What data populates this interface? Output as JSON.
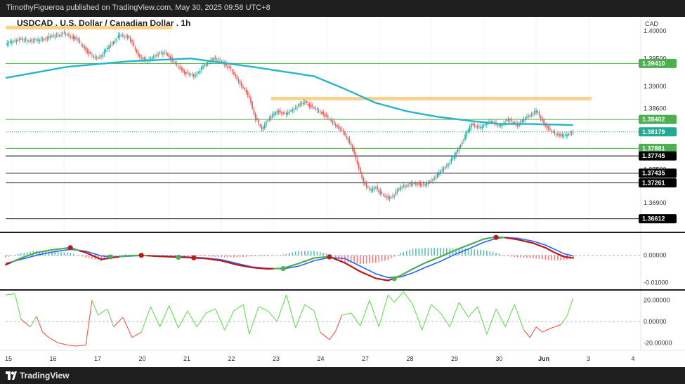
{
  "header": {
    "publish_line": "TimothyFigueroa published on TradingView.com, May 30, 2025 09:58 UTC+8"
  },
  "footer": {
    "brand": "TradingView",
    "logo_icon": "tradingview-logo-icon"
  },
  "chart_data": [
    {
      "type": "candlestick",
      "title": "USDCAD . U.S. Dollar / Canadian Dollar . 1h",
      "currency_label": "CAD",
      "ylim": [
        1.3638,
        1.4025
      ],
      "y_ticks": [
        "1.40000",
        "1.39500",
        "1.39000",
        "1.38600",
        "1.37500",
        "1.36900"
      ],
      "x_ticks": [
        "15",
        "16",
        "17",
        "20",
        "21",
        "22",
        "23",
        "24",
        "27",
        "28",
        "29",
        "30",
        "Jun",
        "3",
        "4"
      ],
      "price_path": [
        [
          0,
          1.3975
        ],
        [
          8,
          1.3985
        ],
        [
          14,
          1.3982
        ],
        [
          22,
          1.3983
        ],
        [
          30,
          1.399
        ],
        [
          38,
          1.3995
        ],
        [
          46,
          1.3985
        ],
        [
          52,
          1.3965
        ],
        [
          58,
          1.395
        ],
        [
          62,
          1.3955
        ],
        [
          68,
          1.3975
        ],
        [
          74,
          1.3992
        ],
        [
          80,
          1.3988
        ],
        [
          86,
          1.3955
        ],
        [
          92,
          1.3945
        ],
        [
          98,
          1.3958
        ],
        [
          104,
          1.396
        ],
        [
          110,
          1.394
        ],
        [
          116,
          1.3925
        ],
        [
          122,
          1.3918
        ],
        [
          128,
          1.3935
        ],
        [
          134,
          1.395
        ],
        [
          140,
          1.3945
        ],
        [
          146,
          1.393
        ],
        [
          152,
          1.3905
        ],
        [
          158,
          1.388
        ],
        [
          162,
          1.3842
        ],
        [
          166,
          1.3822
        ],
        [
          170,
          1.384
        ],
        [
          176,
          1.3855
        ],
        [
          182,
          1.385
        ],
        [
          188,
          1.3862
        ],
        [
          194,
          1.3872
        ],
        [
          200,
          1.386
        ],
        [
          206,
          1.385
        ],
        [
          212,
          1.3835
        ],
        [
          218,
          1.382
        ],
        [
          224,
          1.3795
        ],
        [
          228,
          1.376
        ],
        [
          232,
          1.3728
        ],
        [
          236,
          1.3712
        ],
        [
          240,
          1.3718
        ],
        [
          244,
          1.3705
        ],
        [
          248,
          1.3698
        ],
        [
          252,
          1.3705
        ],
        [
          256,
          1.3718
        ],
        [
          260,
          1.3722
        ],
        [
          266,
          1.3725
        ],
        [
          272,
          1.3722
        ],
        [
          278,
          1.3735
        ],
        [
          284,
          1.3752
        ],
        [
          290,
          1.377
        ],
        [
          296,
          1.38
        ],
        [
          302,
          1.3832
        ],
        [
          308,
          1.3825
        ],
        [
          314,
          1.3838
        ],
        [
          320,
          1.3828
        ],
        [
          326,
          1.384
        ],
        [
          332,
          1.383
        ],
        [
          338,
          1.3845
        ],
        [
          344,
          1.3855
        ],
        [
          348,
          1.3838
        ],
        [
          352,
          1.3822
        ],
        [
          356,
          1.3815
        ],
        [
          362,
          1.381
        ],
        [
          368,
          1.3818
        ]
      ],
      "ma_path": [
        [
          0,
          1.3915
        ],
        [
          40,
          1.3935
        ],
        [
          80,
          1.3945
        ],
        [
          120,
          1.395
        ],
        [
          160,
          1.3935
        ],
        [
          200,
          1.3918
        ],
        [
          220,
          1.3895
        ],
        [
          240,
          1.387
        ],
        [
          260,
          1.3855
        ],
        [
          280,
          1.3845
        ],
        [
          300,
          1.3838
        ],
        [
          320,
          1.3832
        ],
        [
          340,
          1.3832
        ],
        [
          368,
          1.383
        ]
      ],
      "zones": [
        {
          "from": 0,
          "to": 108,
          "y": 1.4005
        },
        {
          "from": 172,
          "to": 380,
          "y": 1.3877
        }
      ],
      "levels": [
        {
          "label": "1.39410",
          "y": 1.3941,
          "tag_color": "#4caf50"
        },
        {
          "label": "1.38402",
          "y": 1.38402,
          "tag_color": "#4caf50"
        },
        {
          "label": "1.38179",
          "y": 1.38179,
          "tag_color": "#22ab94"
        },
        {
          "label": "1.37881",
          "y": 1.37881,
          "tag_color": "#4caf50"
        },
        {
          "label": "1.37745",
          "y": 1.37745,
          "tag_color": "#000000"
        },
        {
          "label": "1.37435",
          "y": 1.37435,
          "tag_color": "#000000"
        },
        {
          "label": "1.37261",
          "y": 1.37261,
          "tag_color": "#000000"
        },
        {
          "label": "1.36612",
          "y": 1.36612,
          "tag_color": "#000000"
        }
      ]
    },
    {
      "type": "macd",
      "ylim": [
        -0.0125,
        0.0082
      ],
      "y_ticks": [
        "0.00000",
        "-0.01000"
      ],
      "macd_path": [
        [
          0,
          -0.0035
        ],
        [
          10,
          -0.001
        ],
        [
          20,
          0.001
        ],
        [
          30,
          0.002
        ],
        [
          42,
          0.0028
        ],
        [
          52,
          0.001
        ],
        [
          62,
          -0.0015
        ],
        [
          70,
          -0.0008
        ],
        [
          78,
          -0.0002
        ],
        [
          88,
          0.0
        ],
        [
          100,
          -0.0004
        ],
        [
          118,
          -0.0008
        ],
        [
          130,
          -0.0012
        ],
        [
          140,
          -0.002
        ],
        [
          150,
          -0.0035
        ],
        [
          160,
          -0.0045
        ],
        [
          170,
          -0.005
        ],
        [
          180,
          -0.0048
        ],
        [
          190,
          -0.003
        ],
        [
          200,
          -0.001
        ],
        [
          210,
          -0.0005
        ],
        [
          220,
          -0.0028
        ],
        [
          230,
          -0.006
        ],
        [
          240,
          -0.0085
        ],
        [
          248,
          -0.0093
        ],
        [
          256,
          -0.0075
        ],
        [
          264,
          -0.005
        ],
        [
          272,
          -0.0028
        ],
        [
          282,
          -0.0005
        ],
        [
          292,
          0.002
        ],
        [
          302,
          0.0042
        ],
        [
          310,
          0.006
        ],
        [
          318,
          0.0068
        ],
        [
          324,
          0.0065
        ],
        [
          332,
          0.0058
        ],
        [
          342,
          0.0045
        ],
        [
          350,
          0.0028
        ],
        [
          356,
          0.001
        ],
        [
          362,
          -0.0005
        ],
        [
          368,
          -0.001
        ]
      ],
      "signal_path": [
        [
          0,
          -0.003
        ],
        [
          10,
          -0.0015
        ],
        [
          20,
          0.0
        ],
        [
          30,
          0.0012
        ],
        [
          42,
          0.0022
        ],
        [
          52,
          0.0015
        ],
        [
          62,
          -0.0002
        ],
        [
          70,
          -0.0006
        ],
        [
          78,
          -0.0004
        ],
        [
          88,
          -0.0001
        ],
        [
          100,
          -0.0002
        ],
        [
          118,
          -0.0006
        ],
        [
          130,
          -0.001
        ],
        [
          140,
          -0.0016
        ],
        [
          150,
          -0.003
        ],
        [
          160,
          -0.0043
        ],
        [
          170,
          -0.0048
        ],
        [
          180,
          -0.005
        ],
        [
          190,
          -0.004
        ],
        [
          200,
          -0.002
        ],
        [
          210,
          -0.0008
        ],
        [
          220,
          -0.0012
        ],
        [
          230,
          -0.004
        ],
        [
          240,
          -0.0068
        ],
        [
          248,
          -0.0082
        ],
        [
          256,
          -0.008
        ],
        [
          264,
          -0.0065
        ],
        [
          272,
          -0.0045
        ],
        [
          282,
          -0.0022
        ],
        [
          292,
          0.0005
        ],
        [
          302,
          0.0028
        ],
        [
          310,
          0.0048
        ],
        [
          318,
          0.0062
        ],
        [
          324,
          0.0066
        ],
        [
          332,
          0.0063
        ],
        [
          342,
          0.0052
        ],
        [
          350,
          0.0038
        ],
        [
          356,
          0.0022
        ],
        [
          362,
          0.0006
        ],
        [
          368,
          -0.0002
        ]
      ],
      "cross_points": [
        {
          "x": 42,
          "v": 0.0028,
          "kind": "bearish"
        },
        {
          "x": 68,
          "v": -0.0006,
          "kind": "bullish"
        },
        {
          "x": 88,
          "v": 0.0,
          "kind": "bearish"
        },
        {
          "x": 112,
          "v": -0.0007,
          "kind": "bullish"
        },
        {
          "x": 122,
          "v": -0.0009,
          "kind": "bearish"
        },
        {
          "x": 180,
          "v": -0.0049,
          "kind": "bullish"
        },
        {
          "x": 210,
          "v": -0.0006,
          "kind": "bearish"
        },
        {
          "x": 252,
          "v": -0.0086,
          "kind": "bullish"
        },
        {
          "x": 318,
          "v": 0.0066,
          "kind": "bearish"
        }
      ]
    },
    {
      "type": "oscillator",
      "ylim": [
        -27,
        29
      ],
      "y_ticks": [
        "20.00000",
        "0.00000",
        "-20.00000"
      ],
      "osc_path": [
        [
          0,
          25
        ],
        [
          6,
          26
        ],
        [
          10,
          2
        ],
        [
          16,
          -5
        ],
        [
          20,
          5
        ],
        [
          24,
          -10
        ],
        [
          28,
          -15
        ],
        [
          34,
          -20
        ],
        [
          40,
          -22
        ],
        [
          46,
          -23
        ],
        [
          52,
          -22
        ],
        [
          56,
          20
        ],
        [
          60,
          6
        ],
        [
          66,
          12
        ],
        [
          70,
          -5
        ],
        [
          76,
          4
        ],
        [
          82,
          -15
        ],
        [
          88,
          -10
        ],
        [
          94,
          14
        ],
        [
          100,
          -5
        ],
        [
          106,
          15
        ],
        [
          112,
          -6
        ],
        [
          118,
          10
        ],
        [
          124,
          -5
        ],
        [
          130,
          8
        ],
        [
          136,
          12
        ],
        [
          142,
          -8
        ],
        [
          148,
          10
        ],
        [
          154,
          16
        ],
        [
          158,
          -12
        ],
        [
          164,
          14
        ],
        [
          170,
          10
        ],
        [
          176,
          0
        ],
        [
          182,
          25
        ],
        [
          188,
          -6
        ],
        [
          194,
          16
        ],
        [
          200,
          10
        ],
        [
          204,
          -10
        ],
        [
          210,
          -17
        ],
        [
          214,
          -9
        ],
        [
          218,
          6
        ],
        [
          224,
          8
        ],
        [
          230,
          -4
        ],
        [
          236,
          20
        ],
        [
          242,
          -5
        ],
        [
          248,
          25
        ],
        [
          252,
          18
        ],
        [
          258,
          28
        ],
        [
          264,
          16
        ],
        [
          270,
          -8
        ],
        [
          276,
          16
        ],
        [
          282,
          8
        ],
        [
          288,
          -5
        ],
        [
          294,
          18
        ],
        [
          300,
          4
        ],
        [
          306,
          14
        ],
        [
          312,
          -12
        ],
        [
          318,
          12
        ],
        [
          324,
          -5
        ],
        [
          330,
          16
        ],
        [
          336,
          -8
        ],
        [
          340,
          -15
        ],
        [
          344,
          -5
        ],
        [
          348,
          -10
        ],
        [
          354,
          -6
        ],
        [
          360,
          -3
        ],
        [
          364,
          5
        ],
        [
          368,
          22
        ]
      ]
    }
  ]
}
